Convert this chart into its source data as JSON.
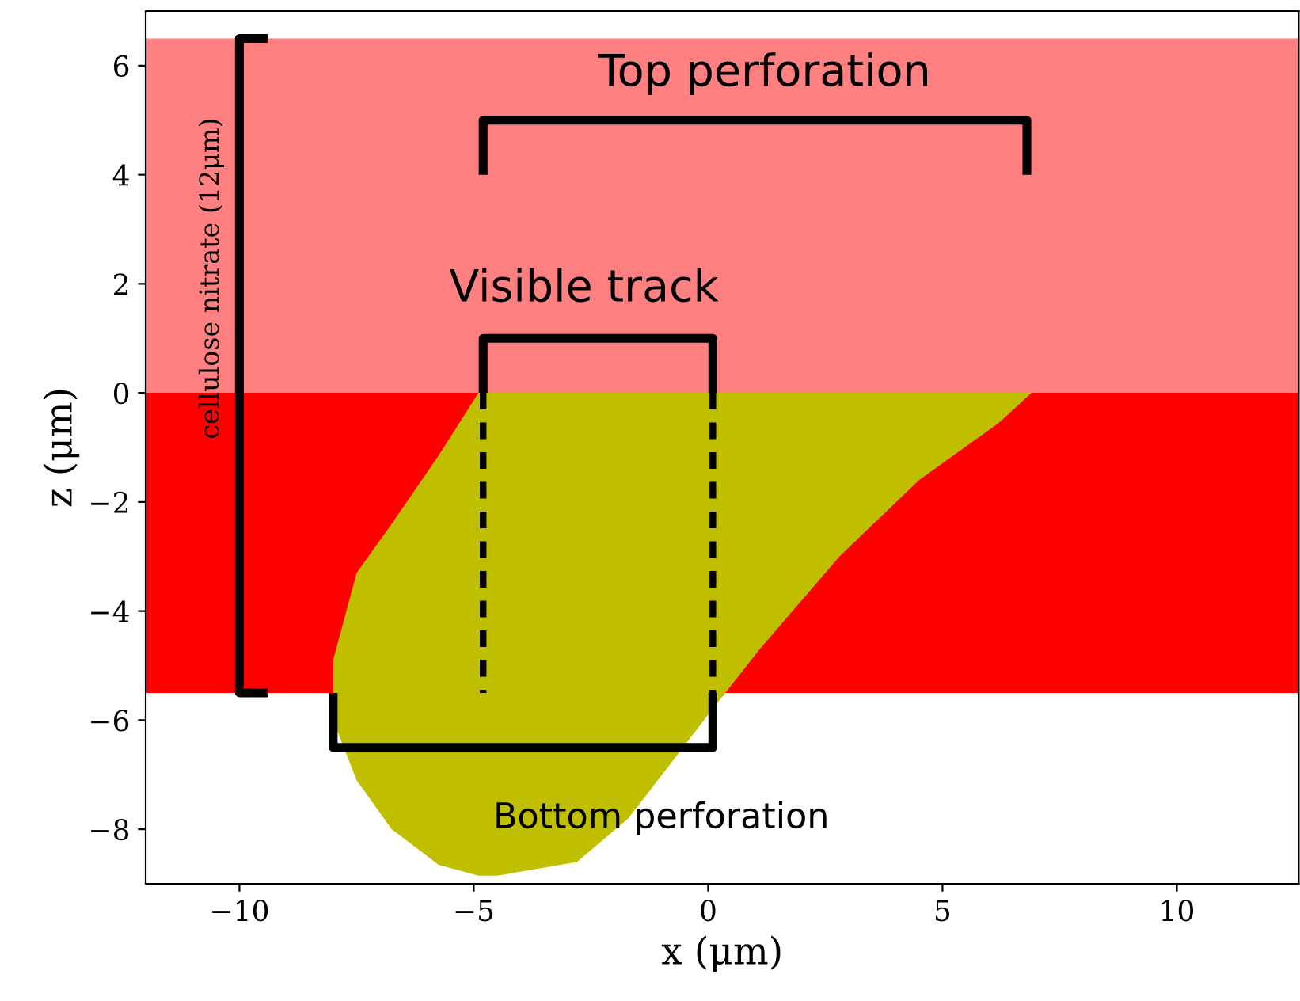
{
  "chart_data": {
    "type": "area",
    "xlabel": "x (μm)",
    "ylabel": "z (μm)",
    "xlim": [
      -12,
      12.6
    ],
    "ylim": [
      -9,
      7
    ],
    "xticks": [
      -10,
      -5,
      0,
      5,
      10
    ],
    "yticks": [
      -8,
      -6,
      -4,
      -2,
      0,
      2,
      4,
      6
    ],
    "grid": false,
    "bands": [
      {
        "axis": "y",
        "from": 0,
        "to": 6.5,
        "color": "#ff8080"
      },
      {
        "axis": "y",
        "from": -5.5,
        "to": 0,
        "color": "#ff0000"
      }
    ],
    "series": [
      {
        "color": "#bfbf00",
        "x": [
          -8,
          -7.5,
          -6.75,
          -5.75,
          -4.9,
          6.9,
          6.2,
          4.5,
          2.8,
          1.1,
          0,
          -1.7,
          -2.8,
          -4.5,
          -4.9,
          -5.75,
          -6.75,
          -7.5,
          -8
        ],
        "values": [
          -4.9,
          -3.3,
          -2.4,
          -1.15,
          0,
          0,
          -0.55,
          -1.6,
          -3.0,
          -4.7,
          -5.9,
          -7.8,
          -8.6,
          -8.85,
          -8.85,
          -8.65,
          -8.0,
          -7.1,
          -6.0
        ]
      }
    ],
    "annotations": [
      "Top perforation",
      "Visible track",
      "Bottom perforation",
      "cellulose nitrate (12μm)"
    ]
  }
}
